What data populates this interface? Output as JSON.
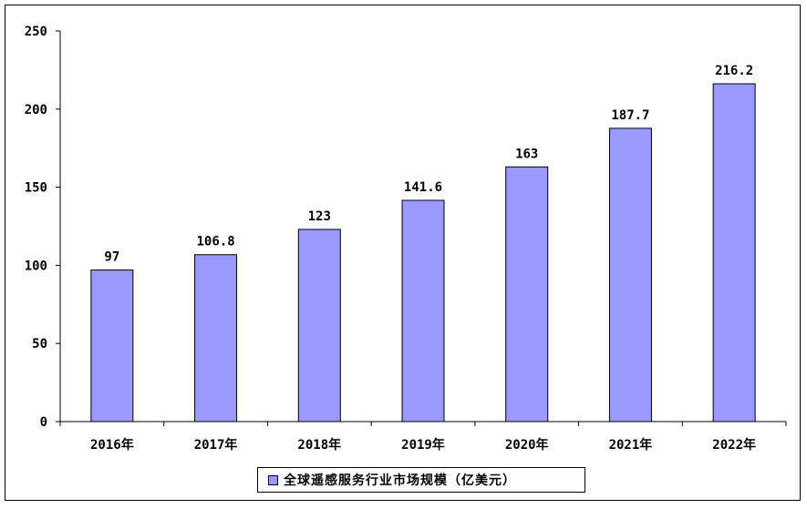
{
  "chart_data": {
    "type": "bar",
    "categories": [
      "2016年",
      "2017年",
      "2018年",
      "2019年",
      "2020年",
      "2021年",
      "2022年"
    ],
    "series": [
      {
        "name": "全球遥感服务行业市场规模（亿美元）",
        "values": [
          97,
          106.8,
          123,
          141.6,
          163,
          187.7,
          216.2
        ],
        "labels": [
          "97",
          "106.8",
          "123",
          "141.6",
          "163",
          "187.7",
          "216.2"
        ],
        "color": "#9999ff"
      }
    ],
    "y_ticks": [
      "0",
      "50",
      "100",
      "150",
      "200",
      "250"
    ],
    "ylim": [
      0,
      250
    ],
    "grid": false,
    "legend_position": "bottom"
  }
}
